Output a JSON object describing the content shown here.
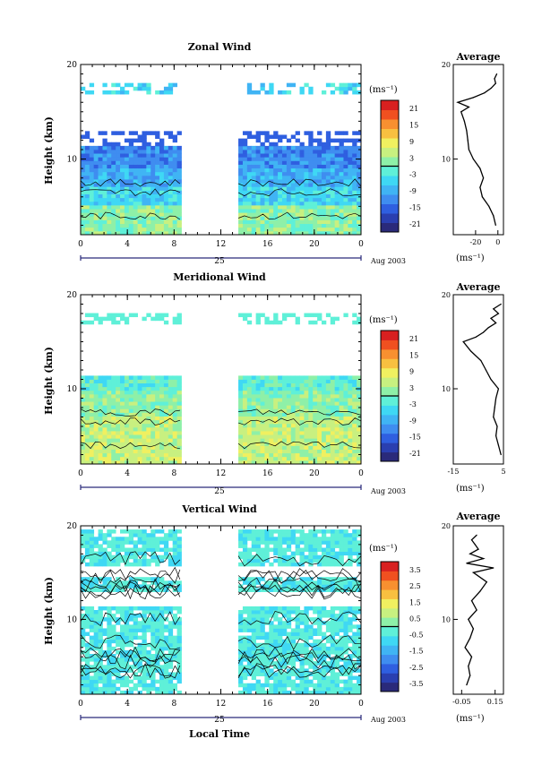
{
  "colors": {
    "scale": [
      "#2a2a7a",
      "#2a3fb0",
      "#2f5fe0",
      "#3f8df0",
      "#40b4f4",
      "#3fd8f4",
      "#5ff0d8",
      "#8ef0a8",
      "#c8f080",
      "#f0f060",
      "#f8c040",
      "#f89030",
      "#f05020",
      "#d82020"
    ],
    "profile": "#000000"
  },
  "chart_data": [
    {
      "type": "heatmap",
      "title": "Zonal Wind",
      "ylabel": "Height (km)",
      "xlim": [
        0,
        24
      ],
      "ylim": [
        2,
        20
      ],
      "x_ticks": [
        "0",
        "4",
        "8",
        "12",
        "16",
        "20",
        "0"
      ],
      "y_ticks": [
        "10",
        "20"
      ],
      "date_label": "25",
      "month_label": "Aug 2003",
      "colorbar": {
        "unit": "(ms⁻¹)",
        "min": -24,
        "max": 24,
        "ticks": [
          "21",
          "15",
          "9",
          "3",
          "-3",
          "-9",
          "-15",
          "-21"
        ],
        "zero_line": 0
      },
      "data_gap": [
        8.5,
        13.5
      ],
      "profile": {
        "title": "Average",
        "xlim": [
          -40,
          5
        ],
        "x_ticks": [
          "-20",
          "0"
        ],
        "unit": "(ms⁻¹)",
        "height": [
          3,
          4,
          5,
          6,
          7,
          8,
          9,
          10,
          11,
          12,
          13,
          14,
          15,
          15.5,
          16,
          16.5,
          17,
          17.5,
          18,
          18.5,
          19
        ],
        "values": [
          -2,
          -4,
          -8,
          -14,
          -16,
          -13,
          -16,
          -22,
          -26,
          -27,
          -28,
          -30,
          -33,
          -26,
          -36,
          -22,
          -12,
          -6,
          -2,
          -3,
          -1
        ]
      }
    },
    {
      "type": "heatmap",
      "title": "Meridional Wind",
      "ylabel": "Height (km)",
      "xlim": [
        0,
        24
      ],
      "ylim": [
        2,
        20
      ],
      "x_ticks": [
        "0",
        "4",
        "8",
        "12",
        "16",
        "20",
        "0"
      ],
      "y_ticks": [
        "10",
        "20"
      ],
      "date_label": "25",
      "month_label": "Aug 2003",
      "colorbar": {
        "unit": "(ms⁻¹)",
        "min": -24,
        "max": 24,
        "ticks": [
          "21",
          "15",
          "9",
          "3",
          "-3",
          "-9",
          "-15",
          "-21"
        ],
        "zero_line": 0
      },
      "data_gap": [
        8.5,
        13.5
      ],
      "profile": {
        "title": "Average",
        "xlim": [
          -15,
          5
        ],
        "x_ticks": [
          "-15",
          "5"
        ],
        "unit": "(ms⁻¹)",
        "height": [
          3,
          4,
          5,
          6,
          7,
          8,
          9,
          10,
          11,
          12,
          13,
          14,
          15,
          15.5,
          16,
          16.5,
          17,
          17.5,
          18,
          18.5,
          19
        ],
        "values": [
          4,
          3,
          2,
          2.5,
          1,
          1.5,
          2,
          3,
          0,
          -2,
          -4,
          -8,
          -11,
          -6,
          -3,
          -1,
          2,
          0,
          3,
          1,
          4
        ]
      }
    },
    {
      "type": "heatmap",
      "title": "Vertical Wind",
      "ylabel": "Height (km)",
      "xlabel": "Local Time",
      "xlim": [
        0,
        24
      ],
      "ylim": [
        2,
        20
      ],
      "x_ticks": [
        "0",
        "4",
        "8",
        "12",
        "16",
        "20",
        "0"
      ],
      "y_ticks": [
        "10",
        "20"
      ],
      "date_label": "25",
      "month_label": "Aug 2003",
      "colorbar": {
        "unit": "(ms⁻¹)",
        "min": -4,
        "max": 4,
        "ticks": [
          "3.5",
          "2.5",
          "1.5",
          "0.5",
          "-0.5",
          "-1.5",
          "-2.5",
          "-3.5"
        ],
        "zero_line": 0
      },
      "data_gap": [
        8.5,
        13.5
      ],
      "profile": {
        "title": "Average",
        "xlim": [
          -0.1,
          0.2
        ],
        "x_ticks": [
          "-0.05",
          "0.15"
        ],
        "unit": "(ms⁻¹)",
        "height": [
          3,
          4,
          5,
          6,
          7,
          8,
          9,
          10,
          11,
          12,
          13,
          14,
          15,
          15.5,
          16,
          16.5,
          17,
          17.5,
          18,
          18.5,
          19
        ],
        "values": [
          -0.02,
          0.0,
          -0.01,
          0.01,
          -0.03,
          0.0,
          0.02,
          -0.01,
          0.04,
          0.01,
          0.06,
          0.1,
          0.02,
          0.14,
          -0.02,
          0.08,
          0.0,
          0.05,
          0.03,
          0.01,
          0.04
        ]
      }
    }
  ]
}
